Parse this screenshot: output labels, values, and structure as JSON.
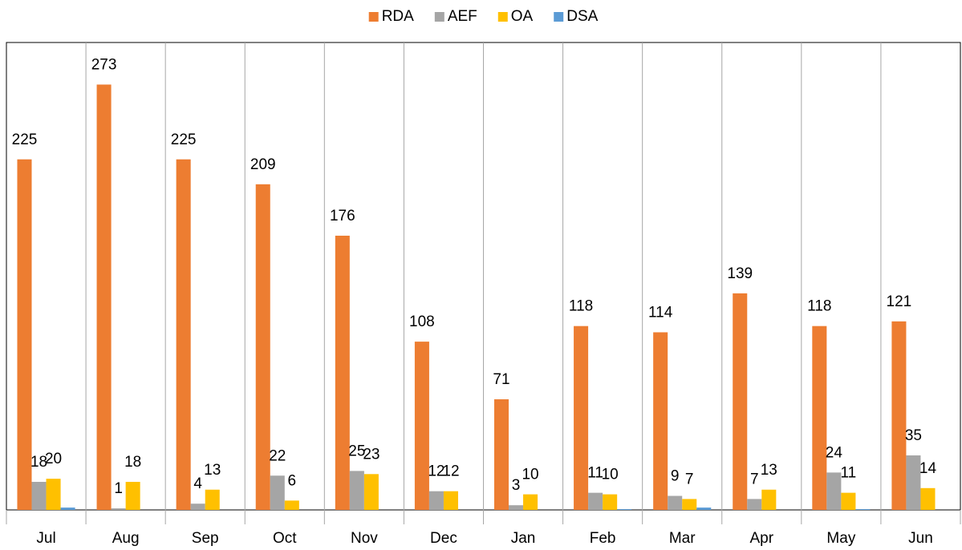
{
  "chart_data": {
    "type": "bar",
    "categories": [
      "Jul",
      "Aug",
      "Sep",
      "Oct",
      "Nov",
      "Dec",
      "Jan",
      "Feb",
      "Mar",
      "Apr",
      "May",
      "Jun"
    ],
    "series": [
      {
        "name": "RDA",
        "color": "#ed7d31",
        "values": [
          225,
          273,
          225,
          209,
          176,
          108,
          71,
          118,
          114,
          139,
          118,
          121
        ]
      },
      {
        "name": "AEF",
        "color": "#a5a5a5",
        "values": [
          18,
          1,
          4,
          22,
          25,
          12,
          3,
          11,
          9,
          7,
          24,
          35
        ]
      },
      {
        "name": "OA",
        "color": "#ffc000",
        "values": [
          20,
          18,
          13,
          6,
          23,
          12,
          10,
          10,
          7,
          13,
          11,
          14
        ]
      },
      {
        "name": "DSA",
        "color": "#5b9bd5",
        "values": [
          1.5,
          0,
          0,
          0,
          0,
          0,
          0,
          0.5,
          1.5,
          0,
          0.5,
          0
        ]
      }
    ],
    "labeled_series": [
      "RDA",
      "AEF",
      "OA"
    ],
    "ylim": [
      0,
      300
    ],
    "legend": "top"
  }
}
